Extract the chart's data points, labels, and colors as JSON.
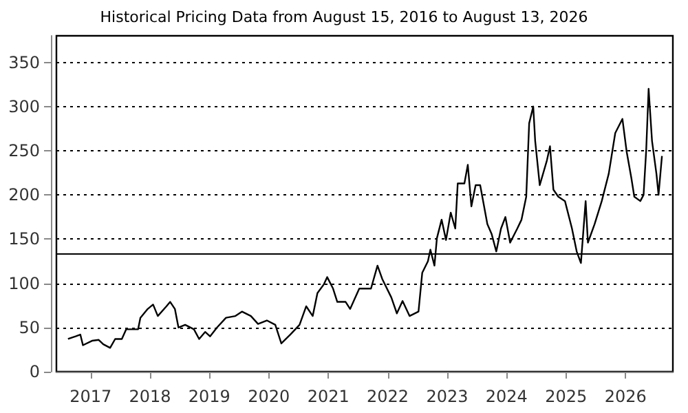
{
  "chart_data": {
    "type": "line",
    "title": "Historical Pricing Data from August 15, 2016 to August 13, 2026",
    "x": [
      "2016-08-15",
      "2016-10-01",
      "2016-10-30",
      "2016-11-15",
      "2017-01-10",
      "2017-02-20",
      "2017-03-20",
      "2017-05-01",
      "2017-06-01",
      "2017-07-12",
      "2017-08-08",
      "2017-10-20",
      "2017-11-03",
      "2017-12-18",
      "2018-01-20",
      "2018-02-18",
      "2018-04-12",
      "2018-05-05",
      "2018-06-03",
      "2018-06-25",
      "2018-08-05",
      "2018-09-28",
      "2018-10-30",
      "2018-12-06",
      "2019-01-05",
      "2019-02-17",
      "2019-04-13",
      "2019-06-10",
      "2019-07-20",
      "2019-09-13",
      "2019-10-27",
      "2019-12-20",
      "2020-02-10",
      "2020-03-18",
      "2020-05-12",
      "2020-07-08",
      "2020-08-18",
      "2020-09-27",
      "2020-10-26",
      "2020-12-05",
      "2020-12-25",
      "2021-01-30",
      "2021-02-25",
      "2021-04-17",
      "2021-05-15",
      "2021-07-10",
      "2021-09-20",
      "2021-10-30",
      "2021-11-28",
      "2022-01-23",
      "2022-02-26",
      "2022-04-02",
      "2022-05-15",
      "2022-07-09",
      "2022-08-01",
      "2022-09-05",
      "2022-09-20",
      "2022-10-15",
      "2022-10-30",
      "2022-11-28",
      "2022-12-25",
      "2023-01-23",
      "2023-02-20",
      "2023-03-07",
      "2023-04-17",
      "2023-05-08",
      "2023-05-30",
      "2023-06-25",
      "2023-07-23",
      "2023-09-05",
      "2023-10-01",
      "2023-10-30",
      "2023-11-28",
      "2023-12-25",
      "2024-01-23",
      "2024-03-07",
      "2024-04-02",
      "2024-05-01",
      "2024-05-19",
      "2024-06-13",
      "2024-06-25",
      "2024-07-23",
      "2024-09-05",
      "2024-09-24",
      "2024-10-15",
      "2024-11-14",
      "2024-12-25",
      "2025-02-06",
      "2025-03-07",
      "2025-04-02",
      "2025-05-01",
      "2025-05-15",
      "2025-06-25",
      "2025-08-08",
      "2025-09-20",
      "2025-10-30",
      "2025-12-13",
      "2026-01-08",
      "2026-02-06",
      "2026-02-24",
      "2026-04-02",
      "2026-04-22",
      "2026-05-08",
      "2026-05-23",
      "2026-06-13",
      "2026-07-10",
      "2026-07-23",
      "2026-08-13"
    ],
    "series": [
      {
        "color": "#000000",
        "values": [
          37,
          40,
          42,
          30,
          35,
          36,
          31,
          27,
          37,
          37,
          48,
          48,
          61,
          71,
          76,
          63,
          74,
          79,
          71,
          50,
          53,
          48,
          37,
          45,
          40,
          50,
          61,
          63,
          68,
          63,
          54,
          58,
          53,
          32,
          42,
          53,
          74,
          63,
          89,
          99,
          107,
          94,
          79,
          79,
          71,
          94,
          94,
          120,
          105,
          84,
          66,
          80,
          63,
          68,
          112,
          125,
          138,
          120,
          151,
          172,
          149,
          180,
          162,
          213,
          213,
          234,
          187,
          211,
          211,
          167,
          156,
          136,
          162,
          175,
          146,
          162,
          172,
          198,
          281,
          300,
          261,
          211,
          239,
          255,
          206,
          198,
          193,
          162,
          136,
          123,
          193,
          146,
          167,
          193,
          224,
          270,
          286,
          249,
          219,
          198,
          193,
          200,
          250,
          320,
          261,
          224,
          200,
          244
        ]
      }
    ],
    "xlim": [
      "2016-06-05",
      "2026-10-19"
    ],
    "xticks": [
      "2017",
      "2018",
      "2019",
      "2020",
      "2021",
      "2022",
      "2023",
      "2024",
      "2025",
      "2026"
    ],
    "ylim": [
      0,
      380
    ],
    "yticks": [
      0,
      50,
      100,
      150,
      200,
      250,
      300,
      350
    ],
    "grid": "y",
    "marker": "none",
    "line_style": "solid",
    "ref_lines": [
      {
        "axis": "y",
        "value": 134,
        "color": "#000000",
        "line_style": "solid"
      }
    ]
  }
}
